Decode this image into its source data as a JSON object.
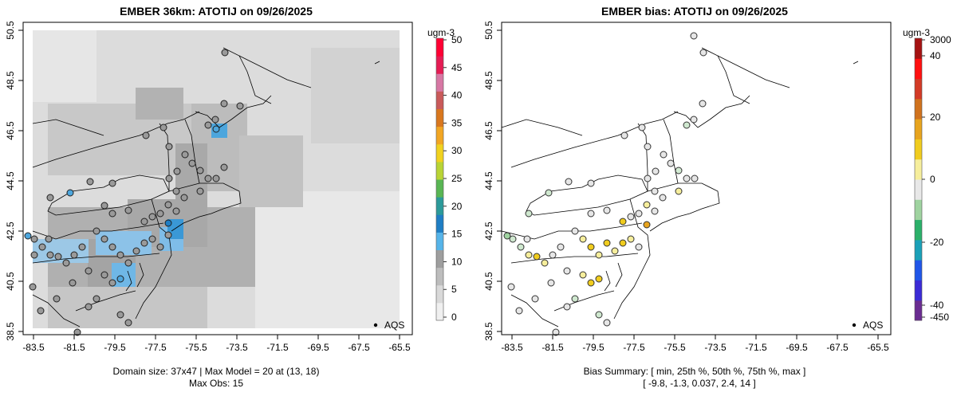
{
  "left_panel": {
    "title": "EMBER 36km: ATOTIJ on 09/26/2025",
    "xticks": [
      "-83.5",
      "-81.5",
      "-79.5",
      "-77.5",
      "-75.5",
      "-73.5",
      "-71.5",
      "-69.5",
      "-67.5",
      "-65.5"
    ],
    "yticks": [
      "38.5",
      "40.5",
      "42.5",
      "44.5",
      "46.5",
      "48.5",
      "50.5"
    ],
    "legend_label": "AQS",
    "footer_line1": "Domain size: 37x47 | Max Model = 20 at (13, 18)",
    "footer_line2": "Max Obs: 15",
    "colorbar": {
      "unit": "ugm-3",
      "labels": [
        "0",
        "5",
        "10",
        "15",
        "20",
        "25",
        "30",
        "35",
        "40",
        "45",
        "50"
      ]
    }
  },
  "right_panel": {
    "title": "EMBER bias: ATOTIJ on 09/26/2025",
    "xticks": [
      "-83.5",
      "-81.5",
      "-79.5",
      "-77.5",
      "-75.5",
      "-73.5",
      "-71.5",
      "-69.5",
      "-67.5",
      "-65.5"
    ],
    "yticks": [
      "38.5",
      "40.5",
      "42.5",
      "44.5",
      "46.5",
      "48.5",
      "50.5"
    ],
    "legend_label": "AQS",
    "footer_line1": "Bias Summary: [ min, 25th %, 50th %, 75th %, max ]",
    "footer_line2": "[ -9.8,   -1.3,   0.037,   2.4,   14 ]",
    "colorbar": {
      "unit": "ugm-3",
      "labels": [
        "-450",
        "-40",
        "-20",
        "0",
        "20",
        "40",
        "3000"
      ]
    }
  },
  "colors": {
    "conc_scale": [
      "#f0f0f0",
      "#d9d9d9",
      "#bdbdbd",
      "#9e9e9e",
      "#56b4e9",
      "#1f7ec4",
      "#2c9a9a",
      "#59b654",
      "#b9d435",
      "#f1d21f",
      "#f2a623",
      "#d9771e",
      "#c95a5a",
      "#d777a4",
      "#e51c54",
      "#ff0033"
    ],
    "bias_scale": [
      "#6a2c91",
      "#3b2bd6",
      "#2056e8",
      "#1aa0b8",
      "#2bb06a",
      "#9fd3a0",
      "#e8e8e8",
      "#f6ee9c",
      "#f0cc1e",
      "#e7a41e",
      "#d0721d",
      "#d33a26",
      "#ff1010",
      "#a51212"
    ]
  }
}
